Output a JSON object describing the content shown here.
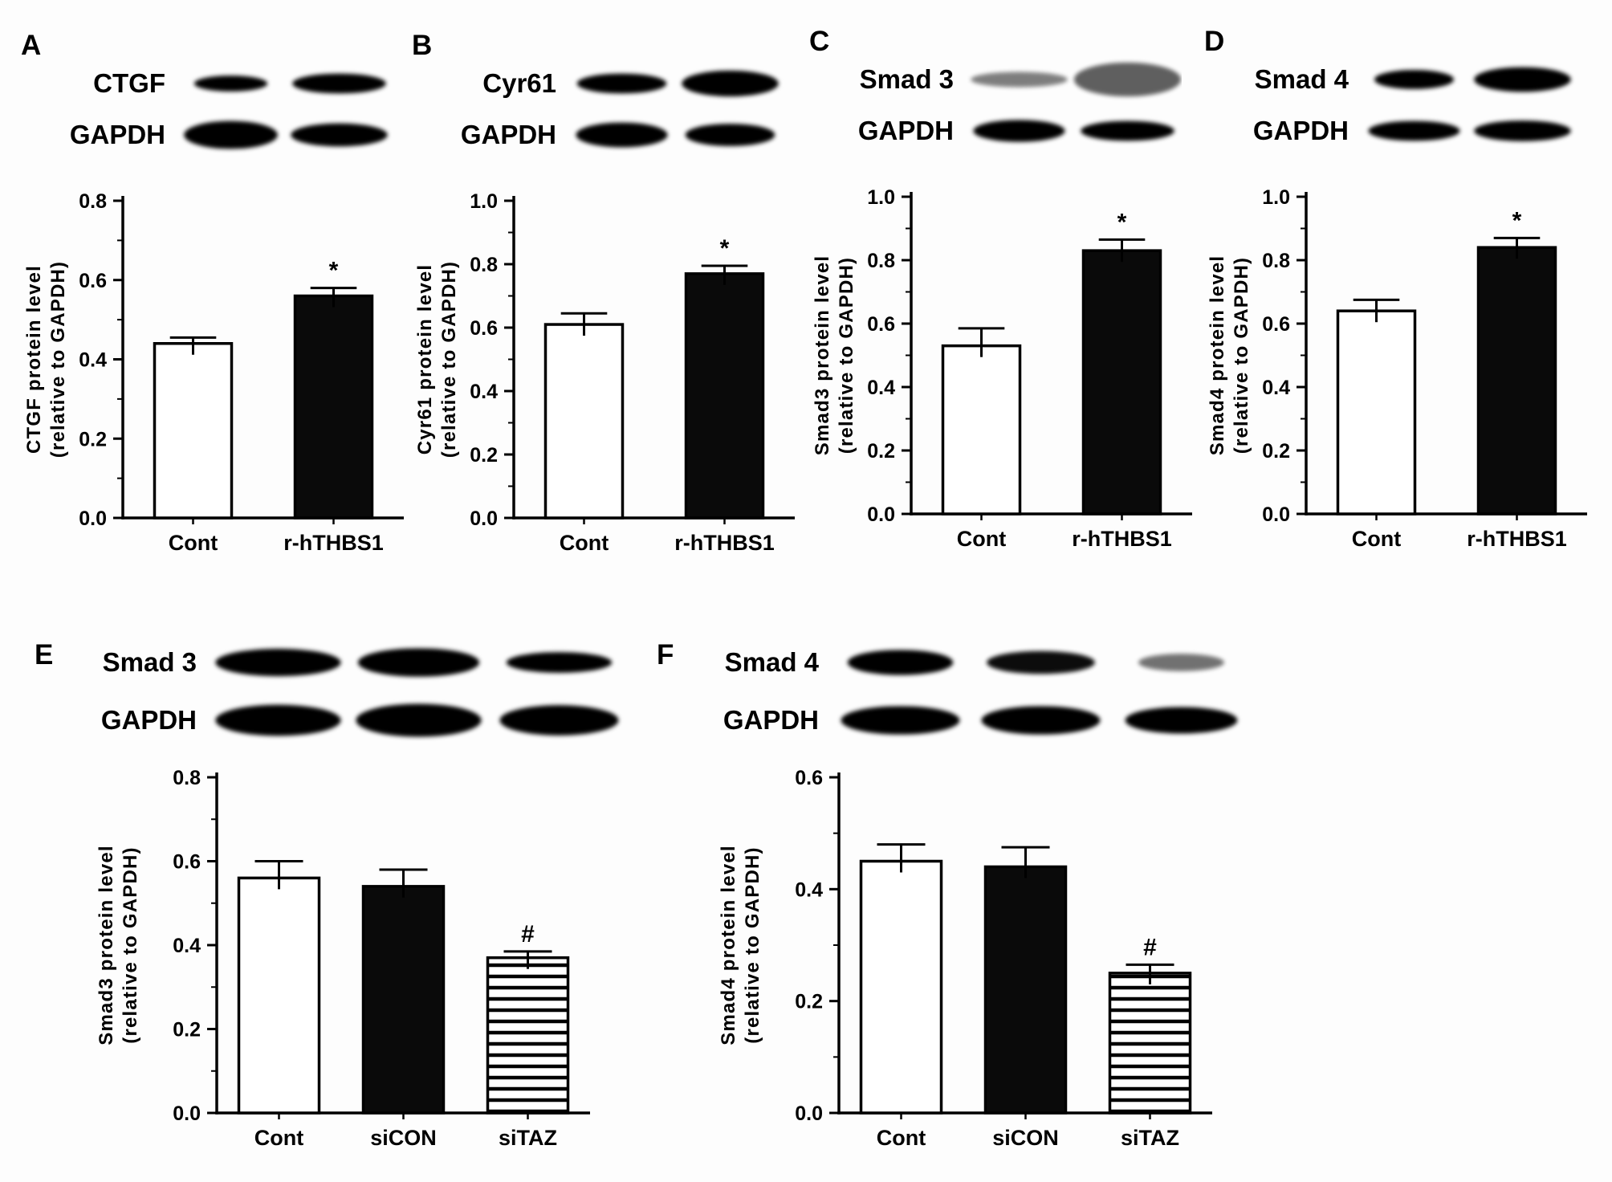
{
  "figure": {
    "background": "#fdfdfd",
    "ink": "#000000",
    "bar_fill_solid": "#0a0a0a",
    "bar_fill_open": "#ffffff",
    "description": "Western blot panels A-F with densitometry bar charts"
  },
  "chart_data": [
    {
      "panel": "A",
      "type": "bar",
      "blot_rows": [
        {
          "label": "CTGF",
          "bands": [
            {
              "w": 0.72,
              "h": 0.4,
              "i": 1
            },
            {
              "w": 0.92,
              "h": 0.5,
              "i": 1
            }
          ]
        },
        {
          "label": "GAPDH",
          "bands": [
            {
              "w": 0.92,
              "h": 0.7,
              "i": 1
            },
            {
              "w": 0.95,
              "h": 0.58,
              "i": 1
            }
          ]
        }
      ],
      "categories": [
        "Cont",
        "r-hTHBS1"
      ],
      "values": [
        0.44,
        0.56
      ],
      "errors": [
        0.015,
        0.02
      ],
      "significance": [
        "",
        "*"
      ],
      "bar_styles": [
        "open",
        "solid"
      ],
      "ylabel_lines": [
        "CTGF protein level",
        "(relative to GAPDH)"
      ],
      "ylim": [
        0,
        0.8
      ],
      "yticks": [
        "0.0",
        "0.2",
        "0.4",
        "0.6",
        "0.8"
      ]
    },
    {
      "panel": "B",
      "type": "bar",
      "blot_rows": [
        {
          "label": "Cyr61",
          "bands": [
            {
              "w": 0.88,
              "h": 0.5,
              "i": 1
            },
            {
              "w": 0.95,
              "h": 0.65,
              "i": 1
            }
          ]
        },
        {
          "label": "GAPDH",
          "bands": [
            {
              "w": 0.9,
              "h": 0.62,
              "i": 1
            },
            {
              "w": 0.88,
              "h": 0.56,
              "i": 1
            }
          ]
        }
      ],
      "categories": [
        "Cont",
        "r-hTHBS1"
      ],
      "values": [
        0.61,
        0.77
      ],
      "errors": [
        0.035,
        0.025
      ],
      "significance": [
        "",
        "*"
      ],
      "bar_styles": [
        "open",
        "solid"
      ],
      "ylabel_lines": [
        "Cyr61 protein level",
        "(relative to GAPDH)"
      ],
      "ylim": [
        0,
        1.0
      ],
      "yticks": [
        "0.0",
        "0.2",
        "0.4",
        "0.6",
        "0.8",
        "1.0"
      ]
    },
    {
      "panel": "C",
      "type": "bar",
      "blot_rows": [
        {
          "label": "Smad 3",
          "bands": [
            {
              "w": 0.95,
              "h": 0.38,
              "i": 0.5
            },
            {
              "w": 1.05,
              "h": 0.85,
              "i": 0.62
            }
          ]
        },
        {
          "label": "GAPDH",
          "bands": [
            {
              "w": 0.9,
              "h": 0.55,
              "i": 1
            },
            {
              "w": 0.92,
              "h": 0.5,
              "i": 1
            }
          ]
        }
      ],
      "categories": [
        "Cont",
        "r-hTHBS1"
      ],
      "values": [
        0.53,
        0.83
      ],
      "errors": [
        0.055,
        0.035
      ],
      "significance": [
        "",
        "*"
      ],
      "bar_styles": [
        "open",
        "solid"
      ],
      "ylabel_lines": [
        "Smad3 protein level",
        "(relative to GAPDH)"
      ],
      "ylim": [
        0,
        1.0
      ],
      "yticks": [
        "0.0",
        "0.2",
        "0.4",
        "0.6",
        "0.8",
        "1.0"
      ]
    },
    {
      "panel": "D",
      "type": "bar",
      "blot_rows": [
        {
          "label": "Smad 4",
          "bands": [
            {
              "w": 0.78,
              "h": 0.48,
              "i": 1
            },
            {
              "w": 0.95,
              "h": 0.62,
              "i": 1
            }
          ]
        },
        {
          "label": "GAPDH",
          "bands": [
            {
              "w": 0.9,
              "h": 0.5,
              "i": 1
            },
            {
              "w": 0.95,
              "h": 0.52,
              "i": 1
            }
          ]
        }
      ],
      "categories": [
        "Cont",
        "r-hTHBS1"
      ],
      "values": [
        0.64,
        0.84
      ],
      "errors": [
        0.035,
        0.03
      ],
      "significance": [
        "",
        "*"
      ],
      "bar_styles": [
        "open",
        "solid"
      ],
      "ylabel_lines": [
        "Smad4 protein level",
        "(relative to GAPDH)"
      ],
      "ylim": [
        0,
        1.0
      ],
      "yticks": [
        "0.0",
        "0.2",
        "0.4",
        "0.6",
        "0.8",
        "1.0"
      ]
    },
    {
      "panel": "E",
      "type": "bar",
      "blot_rows": [
        {
          "label": "Smad 3",
          "bands": [
            {
              "w": 0.95,
              "h": 0.6,
              "i": 1
            },
            {
              "w": 0.92,
              "h": 0.62,
              "i": 1
            },
            {
              "w": 0.8,
              "h": 0.45,
              "i": 1
            }
          ]
        },
        {
          "label": "GAPDH",
          "bands": [
            {
              "w": 0.95,
              "h": 0.68,
              "i": 1
            },
            {
              "w": 0.95,
              "h": 0.72,
              "i": 1
            },
            {
              "w": 0.9,
              "h": 0.66,
              "i": 1
            }
          ]
        }
      ],
      "categories": [
        "Cont",
        "siCON",
        "siTAZ"
      ],
      "values": [
        0.56,
        0.54,
        0.37
      ],
      "errors": [
        0.04,
        0.04,
        0.015
      ],
      "significance": [
        "",
        "",
        "#"
      ],
      "bar_styles": [
        "open",
        "solid",
        "hatched"
      ],
      "ylabel_lines": [
        "Smad3 protein level",
        "(relative to GAPDH)"
      ],
      "ylim": [
        0,
        0.8
      ],
      "yticks": [
        "0.0",
        "0.2",
        "0.4",
        "0.6",
        "0.8"
      ]
    },
    {
      "panel": "F",
      "type": "bar",
      "blot_rows": [
        {
          "label": "Smad 4",
          "bands": [
            {
              "w": 0.8,
              "h": 0.55,
              "i": 1
            },
            {
              "w": 0.82,
              "h": 0.5,
              "i": 0.95
            },
            {
              "w": 0.65,
              "h": 0.38,
              "i": 0.55
            }
          ]
        },
        {
          "label": "GAPDH",
          "bands": [
            {
              "w": 0.9,
              "h": 0.62,
              "i": 1
            },
            {
              "w": 0.9,
              "h": 0.62,
              "i": 1
            },
            {
              "w": 0.85,
              "h": 0.58,
              "i": 1
            }
          ]
        }
      ],
      "categories": [
        "Cont",
        "siCON",
        "siTAZ"
      ],
      "values": [
        0.45,
        0.44,
        0.25
      ],
      "errors": [
        0.03,
        0.035,
        0.015
      ],
      "significance": [
        "",
        "",
        "#"
      ],
      "bar_styles": [
        "open",
        "solid",
        "hatched"
      ],
      "ylabel_lines": [
        "Smad4 protein level",
        "(relative to GAPDH)"
      ],
      "ylim": [
        0,
        0.6
      ],
      "yticks": [
        "0.0",
        "0.2",
        "0.4",
        "0.6"
      ]
    }
  ]
}
